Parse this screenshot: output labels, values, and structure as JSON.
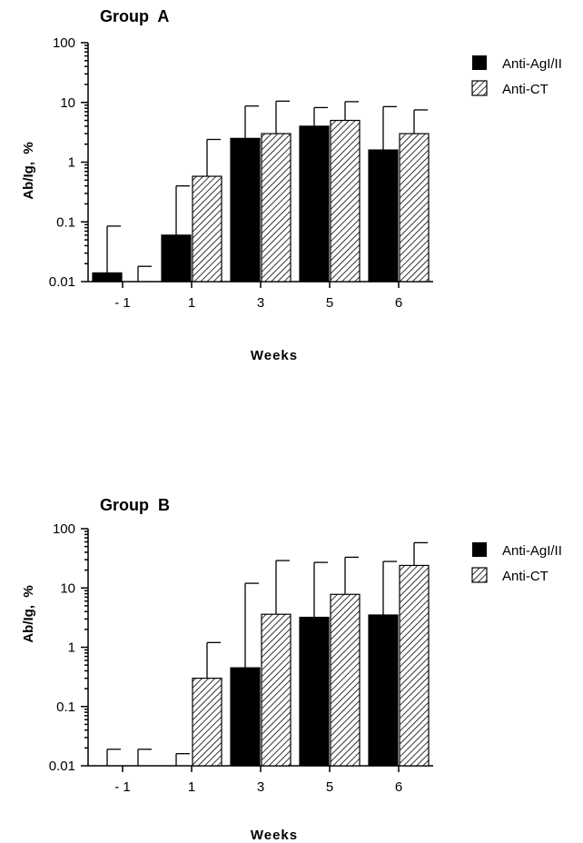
{
  "chart_data": [
    {
      "type": "bar",
      "title": "Group  A",
      "xlabel": "Weeks",
      "ylabel": "Ab/Ig,  %",
      "yscale": "log",
      "ylim": [
        0.01,
        100
      ],
      "yticks": [
        "100",
        "10",
        "1",
        "0.1",
        "0.01"
      ],
      "categories": [
        "- 1",
        "1",
        "3",
        "5",
        "6"
      ],
      "legend_position": "top-right",
      "series": [
        {
          "name": "Anti-AgI/II",
          "pattern": "solid",
          "color": "#000000",
          "values": [
            0.014,
            0.06,
            2.5,
            4,
            1.6
          ],
          "error_upper": [
            0.085,
            0.4,
            8.7,
            8.2,
            8.5
          ]
        },
        {
          "name": "Anti-CT",
          "pattern": "hatched",
          "color": "#000000",
          "values": [
            null,
            0.58,
            3,
            5,
            3
          ],
          "error_upper": [
            0.018,
            2.4,
            10.5,
            10.3,
            7.5
          ]
        }
      ]
    },
    {
      "type": "bar",
      "title": "Group  B",
      "xlabel": "Weeks",
      "ylabel": "Ab/Ig,  %",
      "yscale": "log",
      "ylim": [
        0.01,
        100
      ],
      "yticks": [
        "100",
        "10",
        "1",
        "0.1",
        "0.01"
      ],
      "categories": [
        "- 1",
        "1",
        "3",
        "5",
        "6"
      ],
      "legend_position": "top-right",
      "series": [
        {
          "name": "Anti-AgI/II",
          "pattern": "solid",
          "color": "#000000",
          "values": [
            null,
            null,
            0.45,
            3.2,
            3.5
          ],
          "error_upper": [
            0.019,
            0.016,
            12,
            27,
            28
          ]
        },
        {
          "name": "Anti-CT",
          "pattern": "hatched",
          "color": "#000000",
          "values": [
            null,
            0.3,
            3.6,
            7.8,
            24
          ],
          "error_upper": [
            0.019,
            1.2,
            29,
            33,
            58
          ]
        }
      ]
    }
  ]
}
